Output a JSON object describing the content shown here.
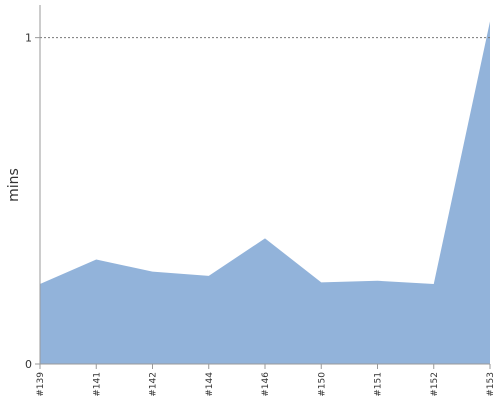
{
  "chart_data": {
    "type": "area",
    "x": [
      "#139",
      "#141",
      "#142",
      "#144",
      "#146",
      "#150",
      "#151",
      "#152",
      "#153"
    ],
    "series": [
      {
        "values": [
          0.245,
          0.32,
          0.283,
          0.27,
          0.385,
          0.25,
          0.255,
          0.245,
          1.05
        ]
      }
    ],
    "ylabel": "mins",
    "yticks": [
      0,
      1
    ],
    "ylim": [
      0,
      1.1
    ],
    "reference_line": 1,
    "colors": {
      "area": "#92b3da",
      "axis": "#999999",
      "refline": "#777777",
      "text": "#333333"
    },
    "grid": false
  }
}
